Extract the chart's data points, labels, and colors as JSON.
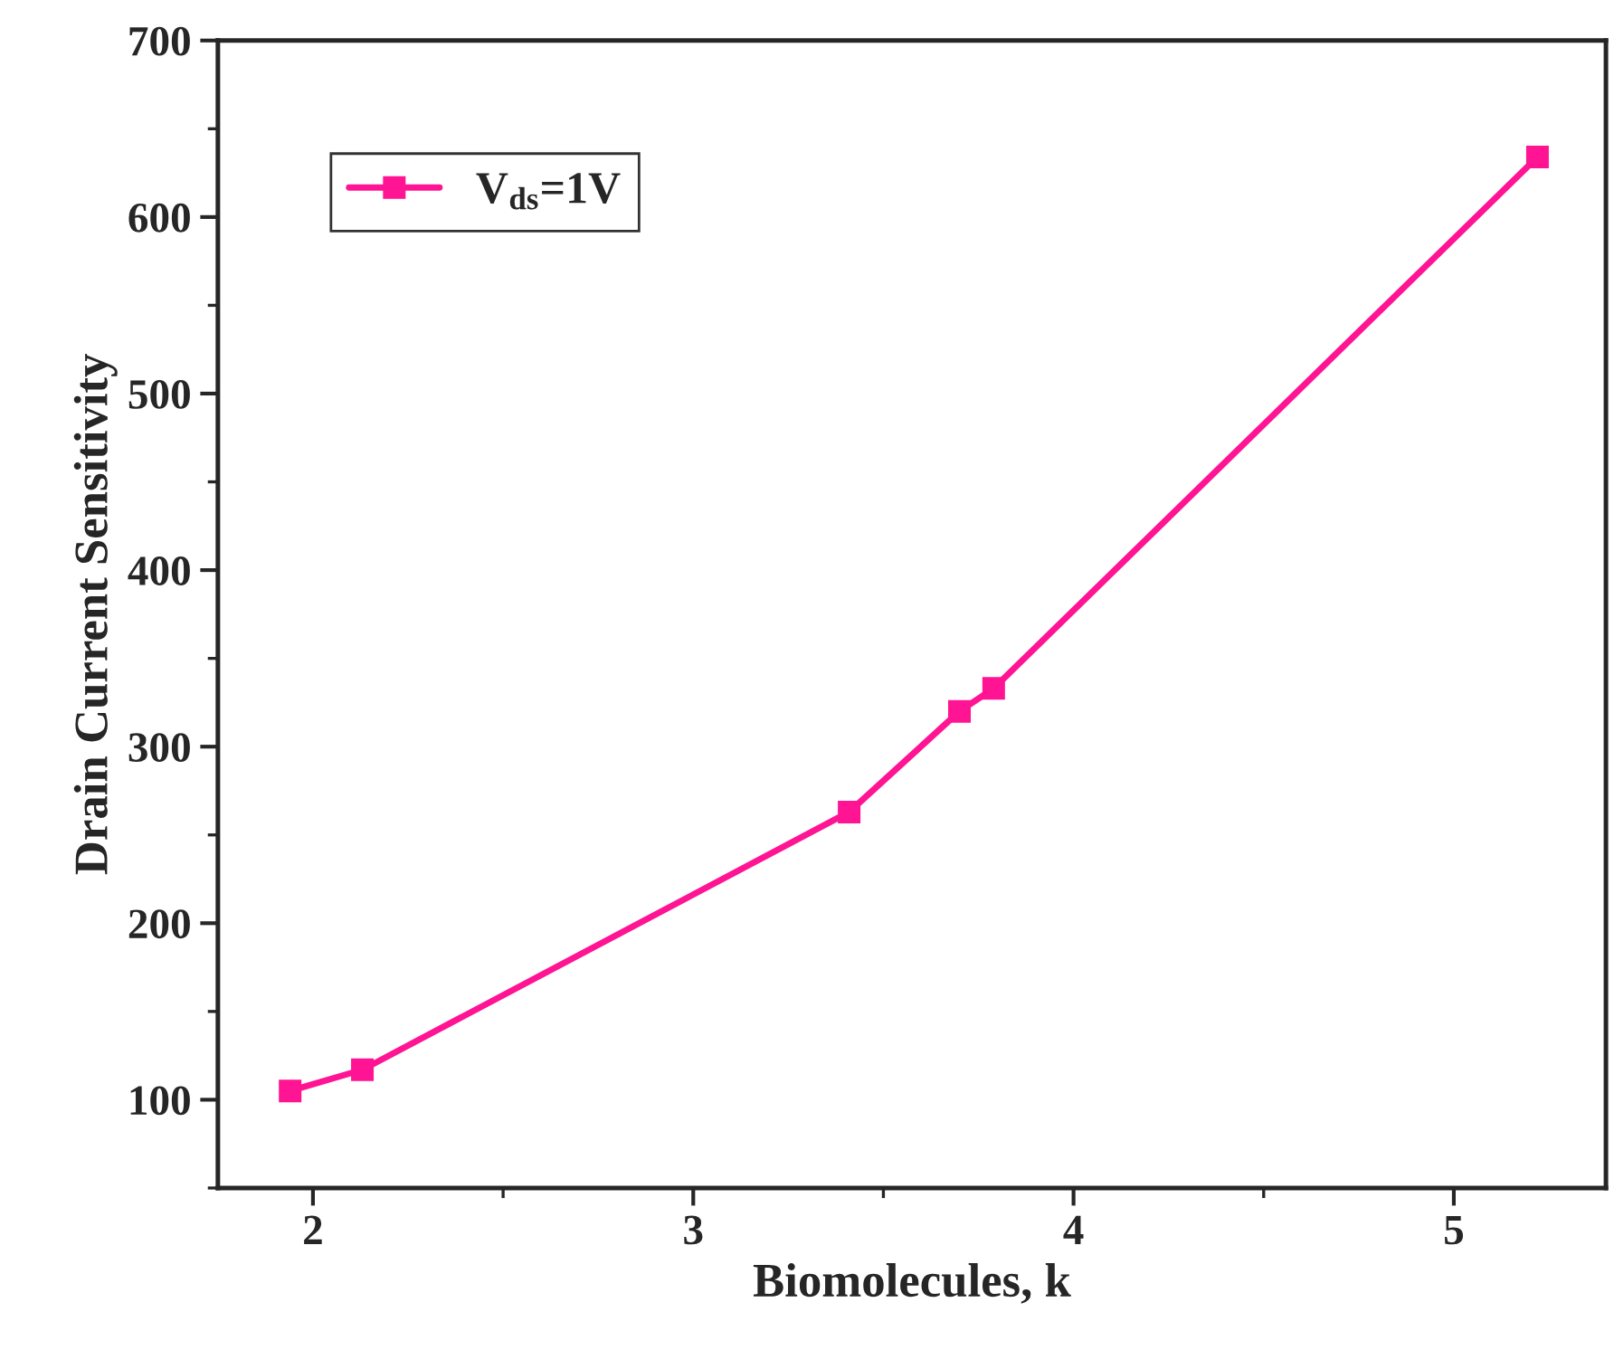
{
  "chart_data": {
    "type": "line",
    "xlabel": "Biomolecules, k",
    "ylabel": "Drain Current Sensitivity",
    "series": [
      {
        "name": "V$_{ds}$=1V",
        "color": "#ff1493",
        "x": [
          1.94,
          2.13,
          3.41,
          3.7,
          3.79,
          5.22
        ],
        "values": [
          105,
          117,
          263,
          320,
          333,
          634
        ]
      }
    ],
    "xlim": [
      1.75,
      5.4
    ],
    "xticks": [
      2,
      3,
      4,
      5
    ],
    "ylim": [
      50,
      700
    ],
    "yticks": [
      100,
      200,
      300,
      400,
      500,
      600,
      700
    ],
    "grid": false,
    "legend": "top left",
    "marker": "square",
    "line_style": "solid"
  }
}
